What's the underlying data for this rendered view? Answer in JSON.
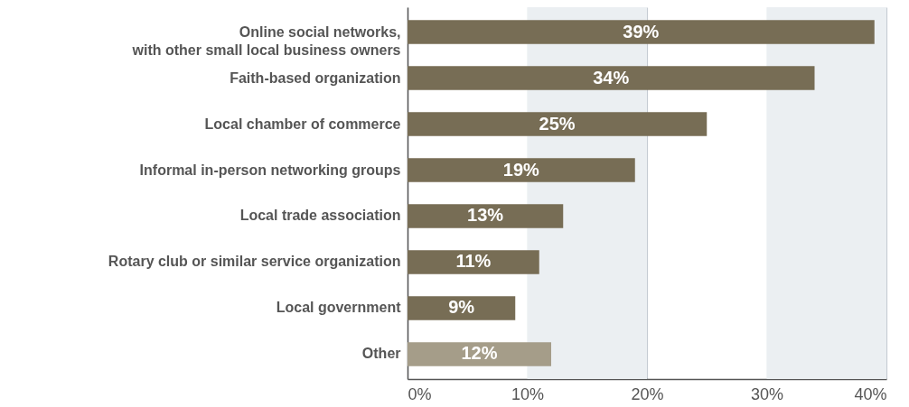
{
  "chart_data": {
    "type": "bar",
    "orientation": "horizontal",
    "categories": [
      "Online social networks, with other small local business owners",
      "Faith-based organization",
      "Local chamber of commerce",
      "Informal in-person networking groups",
      "Local trade association",
      "Rotary club or similar service organization",
      "Local government",
      "Other"
    ],
    "values": [
      39,
      34,
      25,
      19,
      13,
      11,
      9,
      12
    ],
    "colors": [
      "#776d55",
      "#776d55",
      "#776d55",
      "#776d55",
      "#776d55",
      "#776d55",
      "#776d55",
      "#a59d89"
    ],
    "value_labels": [
      "39%",
      "34%",
      "25%",
      "19%",
      "13%",
      "11%",
      "9%",
      "12%"
    ],
    "xlim": [
      0,
      40
    ],
    "xticks": [
      {
        "value": 0,
        "label": "0%"
      },
      {
        "value": 10,
        "label": "10%"
      },
      {
        "value": 20,
        "label": "20%"
      },
      {
        "value": 30,
        "label": "30%"
      },
      {
        "value": 40,
        "label": "40%"
      }
    ],
    "grid": "x",
    "bands": [
      {
        "axis": "x",
        "from": 10,
        "to": 20,
        "color": "#ebeff2"
      },
      {
        "axis": "x",
        "from": 30,
        "to": 40,
        "color": "#ebeff2"
      }
    ]
  }
}
